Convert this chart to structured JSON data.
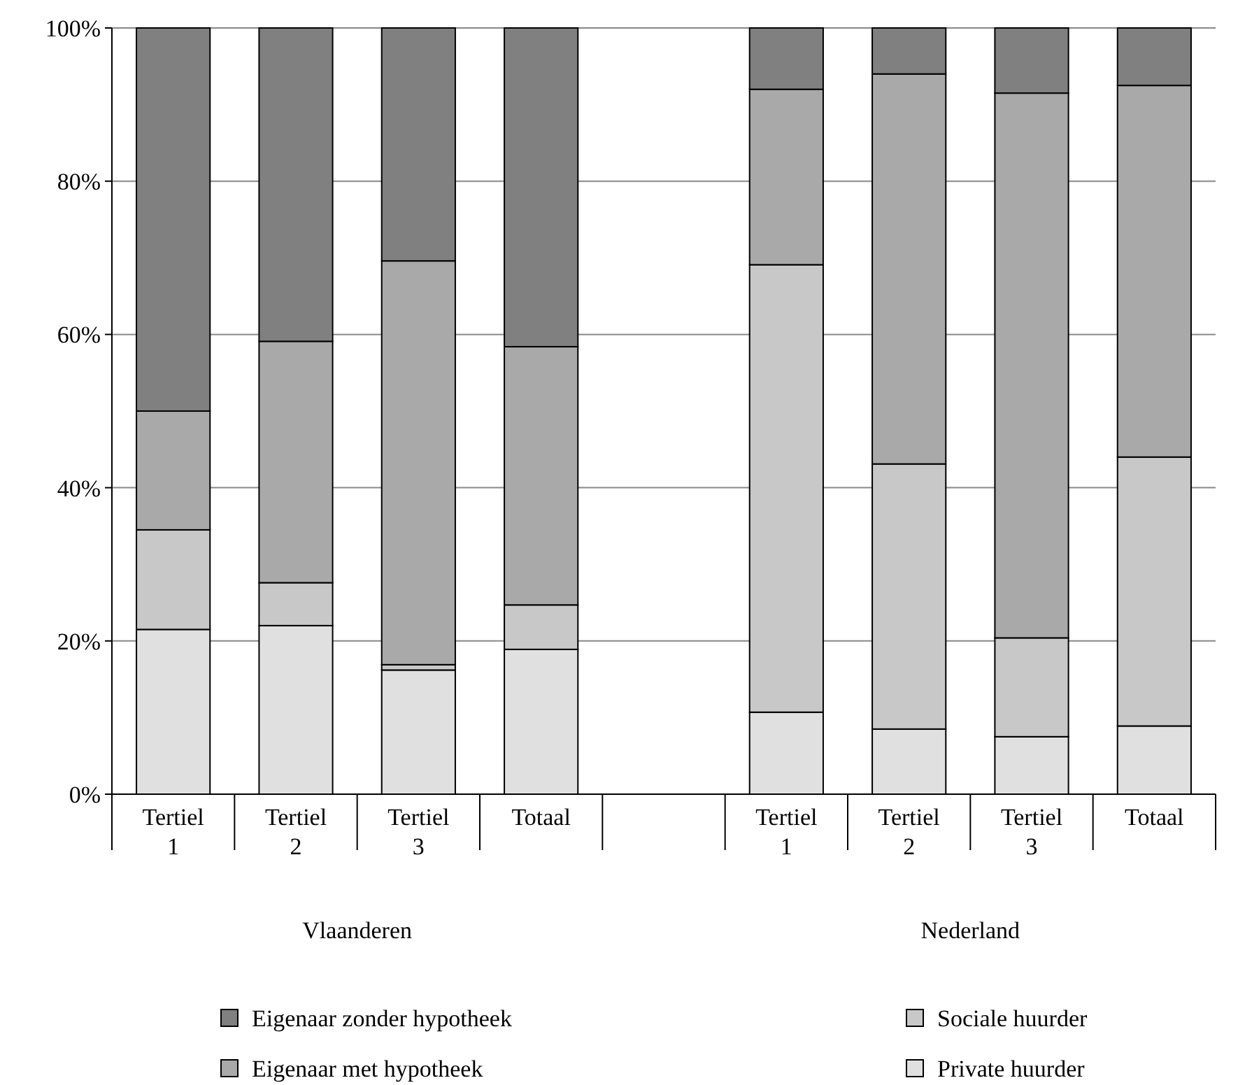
{
  "chart_data": {
    "type": "bar",
    "stacked": true,
    "categories": [
      "Tertiel 1",
      "Tertiel 2",
      "Tertiel 3",
      "Totaal",
      null,
      "Tertiel 1",
      "Tertiel 2",
      "Tertiel 3",
      "Totaal"
    ],
    "series": [
      {
        "name": "Private huurder",
        "color": "#e0e0e0",
        "values": [
          21.5,
          22,
          16.2,
          18.9,
          null,
          10.7,
          8.5,
          7.5,
          8.9
        ]
      },
      {
        "name": "Sociale huurder",
        "color": "#c8c8c8",
        "values": [
          13,
          5.6,
          0.7,
          5.8,
          null,
          58.4,
          34.6,
          12.9,
          35.1
        ]
      },
      {
        "name": "Eigenaar met hypotheek",
        "color": "#a9a9a9",
        "values": [
          15.5,
          31.5,
          52.7,
          33.7,
          null,
          22.9,
          50.9,
          71.1,
          48.5
        ]
      },
      {
        "name": "Eigenaar zonder hypotheek",
        "color": "#808080",
        "values": [
          50,
          40.9,
          30.4,
          41.6,
          null,
          8,
          6,
          8.5,
          7.5
        ]
      }
    ],
    "ylim": [
      0,
      100
    ],
    "yticks": [
      {
        "value": 0,
        "label": "0%"
      },
      {
        "value": 20,
        "label": "20%"
      },
      {
        "value": 40,
        "label": "40%"
      },
      {
        "value": 60,
        "label": "60%"
      },
      {
        "value": 80,
        "label": "80%"
      },
      {
        "value": 100,
        "label": "100%"
      }
    ],
    "grid": "y",
    "legend": "bottom",
    "annotations": [
      "Vlaanderen",
      "Nederland"
    ]
  }
}
